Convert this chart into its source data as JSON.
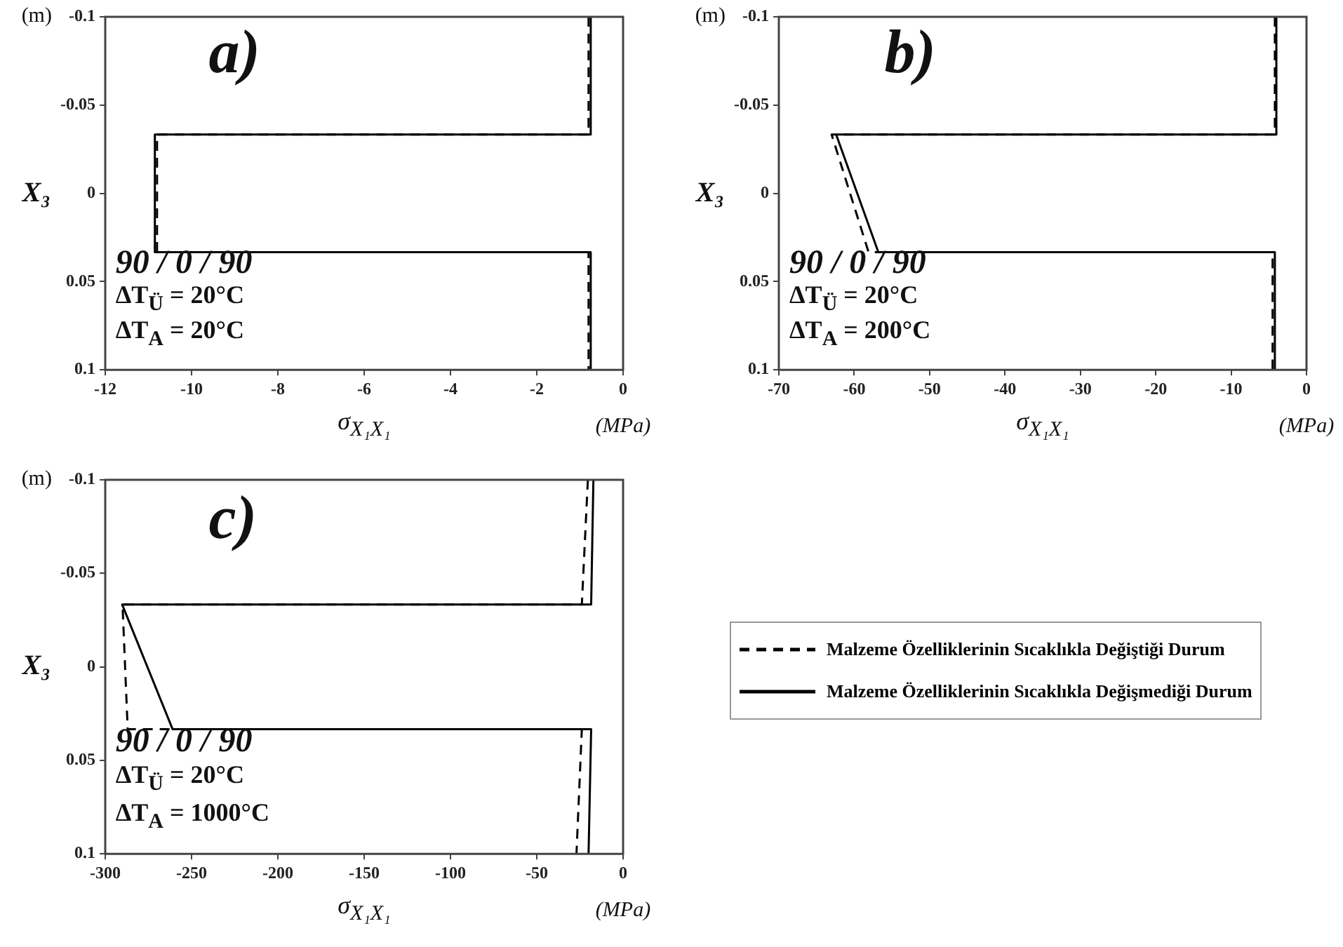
{
  "chart_data": [
    {
      "type": "line",
      "title": "a)",
      "xlabel": "σ$_{X₁X₁}$",
      "ylabel": "X₃",
      "annotations": [
        "90 / 0 / 90",
        "ΔT$_{Ü}$ = 20°C",
        "ΔT$_{A}$ = 20°C",
        "(m)",
        "(MPa)"
      ],
      "xlim": [
        -12,
        0
      ],
      "xticks": [
        -12,
        -10,
        -8,
        -6,
        -4,
        -2,
        0
      ],
      "ylim": [
        0.1,
        -0.1
      ],
      "yticks": [
        -0.1,
        -0.05,
        0,
        0.05,
        0.1
      ],
      "grid": false,
      "legend": false,
      "series": [
        {
          "color": "#000000",
          "line_style": "dashed",
          "x": [
            -0.8,
            -0.8,
            -10.8,
            -10.8,
            -0.8,
            -0.8
          ],
          "values": [
            -0.1,
            -0.0333,
            -0.0333,
            0.0333,
            0.0333,
            0.1
          ]
        },
        {
          "color": "#000000",
          "line_style": "solid",
          "x": [
            -0.75,
            -0.75,
            -10.85,
            -10.85,
            -0.75,
            -0.75
          ],
          "values": [
            -0.1,
            -0.0333,
            -0.0333,
            0.0333,
            0.0333,
            0.1
          ]
        }
      ]
    },
    {
      "type": "line",
      "title": "b)",
      "xlabel": "σ$_{X₁X₁}$",
      "ylabel": "X₃",
      "annotations": [
        "90 / 0 / 90",
        "ΔT$_{Ü}$ = 20°C",
        "ΔT$_{A}$ = 200°C",
        "(m)",
        "(MPa)"
      ],
      "xlim": [
        -70,
        0
      ],
      "xticks": [
        -70,
        -60,
        -50,
        -40,
        -30,
        -20,
        -10,
        0
      ],
      "ylim": [
        0.1,
        -0.1
      ],
      "yticks": [
        -0.1,
        -0.05,
        0,
        0.05,
        0.1
      ],
      "grid": false,
      "legend": false,
      "series": [
        {
          "color": "#000000",
          "line_style": "dashed",
          "x": [
            -4.2,
            -4.2,
            -63,
            -58.1,
            -4.5,
            -4.5
          ],
          "values": [
            -0.1,
            -0.0333,
            -0.0333,
            0.0333,
            0.0333,
            0.1
          ]
        },
        {
          "color": "#000000",
          "line_style": "solid",
          "x": [
            -4,
            -4,
            -62.4,
            -56.8,
            -4.2,
            -4.2
          ],
          "values": [
            -0.1,
            -0.0333,
            -0.0333,
            0.0333,
            0.0333,
            0.1
          ]
        }
      ]
    },
    {
      "type": "line",
      "title": "c)",
      "xlabel": "σ$_{X₁X₁}$",
      "ylabel": "X₃",
      "annotations": [
        "90 / 0 / 90",
        "ΔT$_{Ü}$ = 20°C",
        "ΔT$_{A}$ = 1000°C",
        "(m)",
        "(MPa)"
      ],
      "xlim": [
        -300,
        0
      ],
      "xticks": [
        -300,
        -250,
        -200,
        -150,
        -100,
        -50,
        0
      ],
      "ylim": [
        0.1,
        -0.1
      ],
      "yticks": [
        -0.1,
        -0.05,
        0,
        0.05,
        0.1
      ],
      "grid": false,
      "legend": "right",
      "series": [
        {
          "name": "Malzeme Özelliklerinin Sıcaklıkla Değiştiği Durum",
          "color": "#000000",
          "line_style": "dashed",
          "x": [
            -20.4,
            -23.9,
            -290,
            -287,
            -23.9,
            -27
          ],
          "values": [
            -0.1,
            -0.0333,
            -0.0333,
            0.0333,
            0.0333,
            0.1
          ]
        },
        {
          "name": "Malzeme Özelliklerinin Sıcaklıkla Değişmediği Durum",
          "color": "#000000",
          "line_style": "solid",
          "x": [
            -17.2,
            -18.5,
            -290.2,
            -261,
            -18.5,
            -20
          ],
          "values": [
            -0.1,
            -0.0333,
            -0.0333,
            0.0333,
            0.0333,
            0.1
          ]
        }
      ]
    }
  ]
}
